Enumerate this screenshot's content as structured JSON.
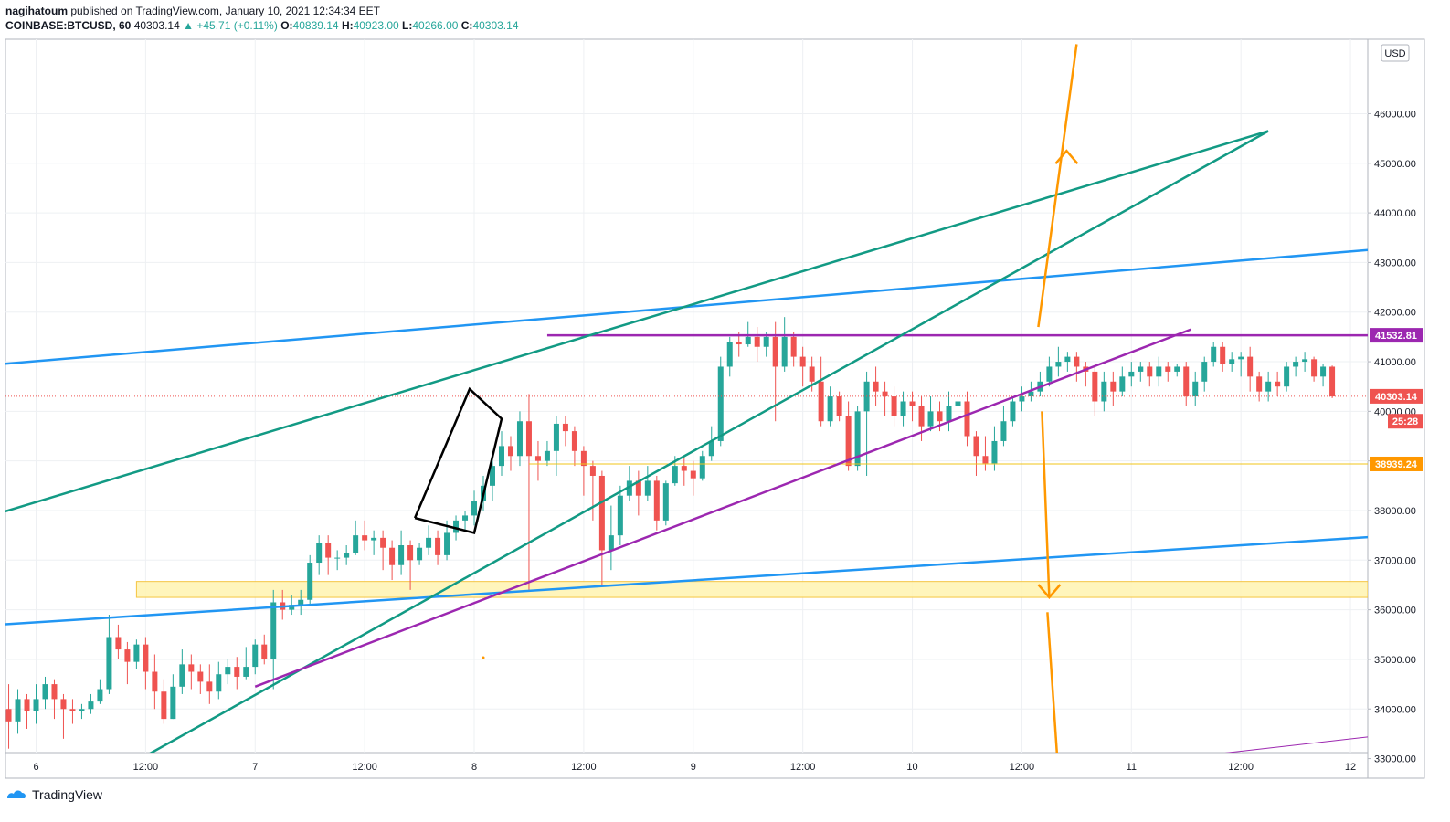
{
  "header": {
    "author": "nagihatoum",
    "published": "published on TradingView.com, January 10, 2021 12:34:34 EET",
    "symbol": "COINBASE:BTCUSD, 60",
    "last": "40303.14",
    "change_arrow": "▲",
    "change": "+45.71 (+0.11%)",
    "o_label": "O:",
    "o": "40839.14",
    "h_label": "H:",
    "h": "40923.00",
    "l_label": "L:",
    "l": "40266.00",
    "c_label": "C:",
    "c": "40303.14"
  },
  "footer": {
    "brand": "TradingView",
    "logo_icon": "tradingview-logo-icon"
  },
  "colors": {
    "up": "#26a69a",
    "down": "#ef5350",
    "teal": "#129a84",
    "blue": "#2196f3",
    "purple": "#9c27b0",
    "orange": "#ff9800",
    "zone_fill": "#fff3b0",
    "zone_border": "#f5c542",
    "grid": "#eef0f3",
    "axis_text": "#131722"
  },
  "chart_data": {
    "type": "candlestick",
    "currency_label": "USD",
    "ylim": [
      32900,
      47500
    ],
    "y_ticks": [
      "33000.00",
      "34000.00",
      "35000.00",
      "36000.00",
      "37000.00",
      "38000.00",
      "39000.00",
      "40000.00",
      "41000.00",
      "42000.00",
      "43000.00",
      "44000.00",
      "45000.00",
      "46000.00"
    ],
    "x_ticks": [
      {
        "label": "6",
        "t": 0
      },
      {
        "label": "12:00",
        "t": 12
      },
      {
        "label": "7",
        "t": 24
      },
      {
        "label": "12:00",
        "t": 36
      },
      {
        "label": "8",
        "t": 48
      },
      {
        "label": "12:00",
        "t": 60
      },
      {
        "label": "9",
        "t": 72
      },
      {
        "label": "12:00",
        "t": 84
      },
      {
        "label": "10",
        "t": 96
      },
      {
        "label": "12:00",
        "t": 108
      },
      {
        "label": "11",
        "t": 120
      },
      {
        "label": "12:00",
        "t": 132
      },
      {
        "label": "12",
        "t": 144
      }
    ],
    "price_labels": [
      {
        "text": "41532.81",
        "price": 41532.81,
        "color": "#9c27b0"
      },
      {
        "text": "40303.14",
        "price": 40303.14,
        "color": "#ef5350"
      },
      {
        "text": "25:28",
        "price": 39800,
        "color": "#ef5350"
      },
      {
        "text": "38939.24",
        "price": 38939.24,
        "color": "#ff9800"
      }
    ],
    "current_price": 40303.14,
    "horizontal_levels": [
      {
        "price": 41532.81,
        "t_start": 56,
        "color": "#9c27b0"
      },
      {
        "price": 38939.24,
        "t_start": 54,
        "color": "#f0c419"
      }
    ],
    "zone": {
      "t_start": 11,
      "price_low": 36250,
      "price_high": 36570
    },
    "trendlines": [
      {
        "color": "#2196f3",
        "t1": -4,
        "p1": 40950,
        "t2": 149,
        "p2": 43300
      },
      {
        "color": "#2196f3",
        "t1": -4,
        "p1": 35700,
        "t2": 149,
        "p2": 37500
      },
      {
        "color": "#129a84",
        "t1": -4,
        "p1": 37950,
        "t2": 135,
        "p2": 45650
      },
      {
        "color": "#129a84",
        "t1": 10.5,
        "p1": 32900,
        "t2": 135,
        "p2": 45650
      },
      {
        "color": "#9c27b0",
        "t1": 24,
        "p1": 34450,
        "t2": 126.5,
        "p2": 41650
      },
      {
        "color": "#9c27b0",
        "t1": 120,
        "p1": 32900,
        "t2": 149,
        "p2": 33500
      }
    ],
    "flag_pattern": [
      {
        "t": 41.5,
        "p": 37850
      },
      {
        "t": 47.5,
        "p": 40450
      },
      {
        "t": 51,
        "p": 39850
      },
      {
        "t": 48,
        "p": 37550
      },
      {
        "t": 41.5,
        "p": 37850
      }
    ],
    "arrows": [
      {
        "color": "#ff9800",
        "t1": 109.8,
        "p1": 41700,
        "t2": 114,
        "p2": 47400,
        "head_t": 112.9,
        "head_p": 45250,
        "dir": "up"
      },
      {
        "color": "#ff9800",
        "t1": 110.2,
        "p1": 40000,
        "t2": 111,
        "p2": 36250,
        "head_t": 111,
        "head_p": 36250,
        "dir": "down"
      },
      {
        "color": "#ff9800",
        "t1": 110.8,
        "p1": 35950,
        "t2": 111.9,
        "p2": 32950
      }
    ],
    "candles": [
      [
        34000,
        33750,
        34500,
        33200
      ],
      [
        33750,
        34200,
        34400,
        33500
      ],
      [
        34200,
        33950,
        34300,
        33600
      ],
      [
        33950,
        34200,
        34500,
        33700
      ],
      [
        34200,
        34500,
        34650,
        34000
      ],
      [
        34500,
        34200,
        34600,
        33800
      ],
      [
        34200,
        34000,
        34300,
        33400
      ],
      [
        34000,
        33950,
        34200,
        33700
      ],
      [
        33950,
        34000,
        34100,
        33800
      ],
      [
        34000,
        34150,
        34300,
        33900
      ],
      [
        34150,
        34400,
        34600,
        34100
      ],
      [
        34400,
        35450,
        35900,
        34300
      ],
      [
        35450,
        35200,
        35700,
        35000
      ],
      [
        35200,
        34950,
        35350,
        34500
      ],
      [
        34950,
        35300,
        35400,
        34800
      ],
      [
        35300,
        34750,
        35450,
        34400
      ],
      [
        34750,
        34350,
        35100,
        34000
      ],
      [
        34350,
        33800,
        34600,
        33700
      ],
      [
        33800,
        34450,
        34700,
        33800
      ],
      [
        34450,
        34900,
        35200,
        34300
      ],
      [
        34900,
        34750,
        35100,
        34400
      ],
      [
        34750,
        34550,
        34900,
        34300
      ],
      [
        34550,
        34350,
        34900,
        34100
      ],
      [
        34350,
        34700,
        34950,
        34200
      ],
      [
        34700,
        34850,
        35000,
        34500
      ],
      [
        34850,
        34650,
        35050,
        34400
      ],
      [
        34650,
        34850,
        35250,
        34600
      ],
      [
        34850,
        35300,
        35400,
        34700
      ],
      [
        35300,
        35000,
        35500,
        34900
      ],
      [
        35000,
        36150,
        36400,
        34400
      ],
      [
        36150,
        36000,
        36400,
        35800
      ],
      [
        36000,
        36100,
        36300,
        35900
      ],
      [
        36100,
        36200,
        36400,
        35900
      ],
      [
        36200,
        36950,
        37100,
        36100
      ],
      [
        36950,
        37350,
        37500,
        36700
      ],
      [
        37350,
        37050,
        37500,
        36700
      ],
      [
        37050,
        37050,
        37200,
        36800
      ],
      [
        37050,
        37150,
        37300,
        36900
      ],
      [
        37150,
        37500,
        37800,
        37100
      ],
      [
        37500,
        37400,
        37800,
        37200
      ],
      [
        37400,
        37450,
        37600,
        37100
      ],
      [
        37450,
        37250,
        37600,
        36800
      ],
      [
        37250,
        36900,
        37400,
        36600
      ],
      [
        36900,
        37300,
        37600,
        36700
      ],
      [
        37300,
        37000,
        37400,
        36400
      ],
      [
        37000,
        37250,
        37350,
        36900
      ],
      [
        37250,
        37450,
        37700,
        37100
      ],
      [
        37450,
        37100,
        37600,
        36900
      ],
      [
        37100,
        37550,
        37800,
        37000
      ],
      [
        37550,
        37800,
        37900,
        37400
      ],
      [
        37800,
        37900,
        38000,
        37600
      ],
      [
        37900,
        38200,
        38400,
        37700
      ],
      [
        38200,
        38500,
        38700,
        38000
      ],
      [
        38500,
        38900,
        39000,
        38200
      ],
      [
        38900,
        39300,
        39600,
        38700
      ],
      [
        39300,
        39100,
        39500,
        38800
      ],
      [
        39100,
        39800,
        40000,
        38900
      ],
      [
        39800,
        39100,
        40350,
        36400
      ],
      [
        39100,
        39000,
        39400,
        38600
      ],
      [
        39000,
        39200,
        39400,
        38900
      ],
      [
        39200,
        39750,
        39900,
        38700
      ],
      [
        39750,
        39600,
        39900,
        39300
      ],
      [
        39600,
        39200,
        39700,
        38900
      ],
      [
        39200,
        38900,
        39300,
        38300
      ],
      [
        38900,
        38700,
        39000,
        37800
      ],
      [
        38700,
        37200,
        38800,
        36500
      ],
      [
        37200,
        37500,
        38100,
        36800
      ],
      [
        37500,
        38300,
        38500,
        37300
      ],
      [
        38300,
        38600,
        38900,
        38200
      ],
      [
        38600,
        38300,
        38800,
        37900
      ],
      [
        38300,
        38600,
        38900,
        38200
      ],
      [
        38600,
        37800,
        38700,
        37600
      ],
      [
        37800,
        38550,
        38600,
        37700
      ],
      [
        38550,
        38900,
        39100,
        38500
      ],
      [
        38900,
        38800,
        39100,
        38500
      ],
      [
        38800,
        38650,
        39000,
        38300
      ],
      [
        38650,
        39100,
        39200,
        38600
      ],
      [
        39100,
        39400,
        39700,
        39000
      ],
      [
        39400,
        40900,
        41100,
        39300
      ],
      [
        40900,
        41400,
        41500,
        40700
      ],
      [
        41400,
        41350,
        41600,
        41100
      ],
      [
        41350,
        41500,
        41800,
        41300
      ],
      [
        41500,
        41300,
        41700,
        41000
      ],
      [
        41300,
        41500,
        41600,
        41100
      ],
      [
        41500,
        40900,
        41800,
        39800
      ],
      [
        40900,
        41500,
        41900,
        40800
      ],
      [
        41500,
        41100,
        41600,
        40900
      ],
      [
        41100,
        40900,
        41300,
        40500
      ],
      [
        40900,
        40600,
        41100,
        40400
      ],
      [
        40600,
        39800,
        41100,
        39700
      ],
      [
        39800,
        40300,
        40500,
        39700
      ],
      [
        40300,
        39900,
        40400,
        39800
      ],
      [
        39900,
        38900,
        40200,
        38800
      ],
      [
        38900,
        40000,
        40100,
        38800
      ],
      [
        40000,
        40600,
        40800,
        38700
      ],
      [
        40600,
        40400,
        40900,
        40100
      ],
      [
        40400,
        40300,
        40600,
        39900
      ],
      [
        40300,
        39900,
        40500,
        39700
      ],
      [
        39900,
        40200,
        40400,
        39700
      ],
      [
        40200,
        40100,
        40400,
        39800
      ],
      [
        40100,
        39700,
        40300,
        39400
      ],
      [
        39700,
        40000,
        40300,
        39600
      ],
      [
        40000,
        39800,
        40200,
        39600
      ],
      [
        39800,
        40100,
        40400,
        39600
      ],
      [
        40100,
        40200,
        40500,
        39900
      ],
      [
        40200,
        39500,
        40400,
        39300
      ],
      [
        39500,
        39100,
        39600,
        38700
      ],
      [
        39100,
        38950,
        39500,
        38800
      ],
      [
        38950,
        39400,
        39700,
        38800
      ],
      [
        39400,
        39800,
        40100,
        39300
      ],
      [
        39800,
        40200,
        40300,
        39700
      ],
      [
        40200,
        40300,
        40500,
        40000
      ],
      [
        40300,
        40400,
        40600,
        40200
      ],
      [
        40400,
        40600,
        40800,
        40300
      ],
      [
        40600,
        40900,
        41100,
        40500
      ],
      [
        40900,
        41000,
        41300,
        40700
      ],
      [
        41000,
        41100,
        41200,
        40800
      ],
      [
        41100,
        40900,
        41200,
        40600
      ],
      [
        40900,
        40800,
        41000,
        40500
      ],
      [
        40800,
        40200,
        40900,
        39900
      ],
      [
        40200,
        40600,
        40800,
        40000
      ],
      [
        40600,
        40400,
        40800,
        40100
      ],
      [
        40400,
        40700,
        40900,
        40300
      ],
      [
        40700,
        40800,
        41000,
        40500
      ],
      [
        40800,
        40900,
        41000,
        40600
      ],
      [
        40900,
        40700,
        41000,
        40500
      ],
      [
        40700,
        40900,
        41100,
        40500
      ],
      [
        40900,
        40800,
        41000,
        40600
      ],
      [
        40800,
        40900,
        40950,
        40700
      ],
      [
        40900,
        40300,
        41000,
        40100
      ],
      [
        40300,
        40600,
        40800,
        40100
      ],
      [
        40600,
        41000,
        41100,
        40400
      ],
      [
        41000,
        41300,
        41400,
        40900
      ],
      [
        41300,
        40950,
        41400,
        40800
      ],
      [
        40950,
        41050,
        41200,
        40800
      ],
      [
        41050,
        41100,
        41200,
        40700
      ],
      [
        41100,
        40700,
        41300,
        40400
      ],
      [
        40700,
        40400,
        40800,
        40200
      ],
      [
        40400,
        40600,
        40800,
        40200
      ],
      [
        40600,
        40500,
        40800,
        40300
      ],
      [
        40500,
        40900,
        41000,
        40400
      ],
      [
        40900,
        41000,
        41100,
        40700
      ],
      [
        41000,
        41050,
        41200,
        40800
      ],
      [
        41050,
        40700,
        41100,
        40600
      ],
      [
        40700,
        40900,
        40950,
        40500
      ],
      [
        40900,
        40300,
        40923,
        40266
      ]
    ]
  }
}
